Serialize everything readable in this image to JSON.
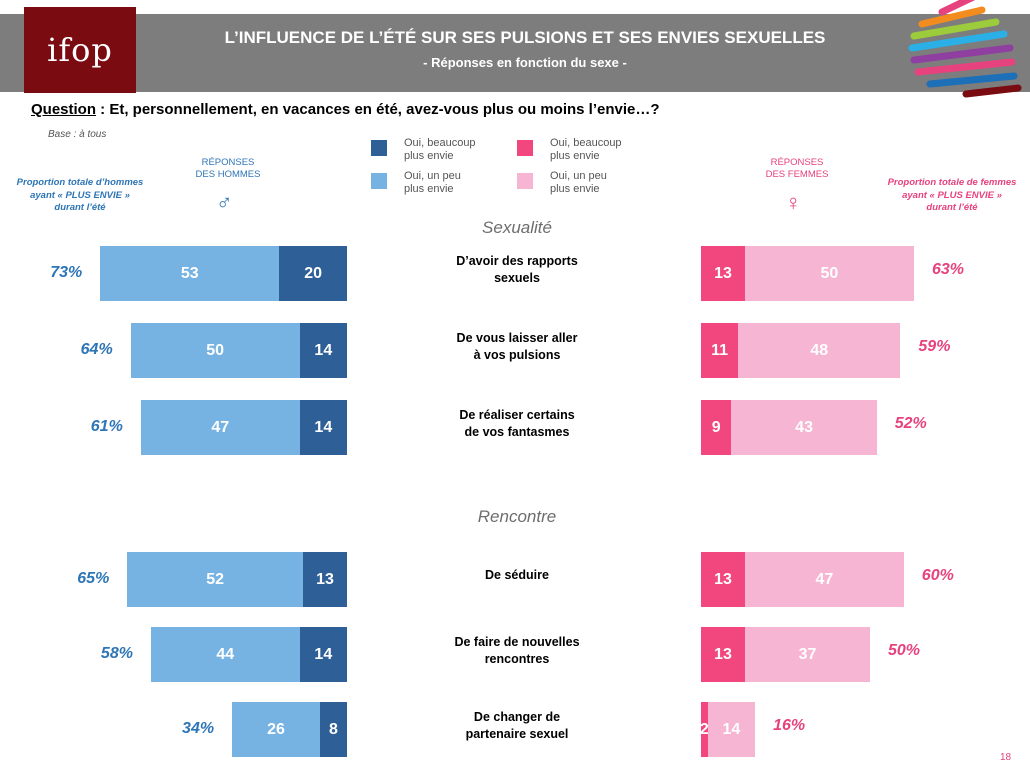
{
  "header": {
    "logo": "ifop",
    "title": "L’INFLUENCE DE L’ÉTÉ SUR SES PULSIONS ET SES ENVIES SEXUELLES",
    "subtitle": "- Réponses en fonction du sexe -"
  },
  "question": {
    "label": "Question",
    "text": " : Et, personnellement, en vacances en été, avez-vous plus ou moins l’envie…?"
  },
  "base": "Base : à tous",
  "colors": {
    "men_high": "#2e5f96",
    "men_low": "#76b3e3",
    "women_high": "#f2467f",
    "women_low": "#f6b5d3",
    "men_text": "#2e75b6",
    "women_text": "#e6427e",
    "header_bg": "#7d7d7d",
    "logo_bg": "#7a0b11"
  },
  "legend": {
    "men_high": "Oui, beaucoup\nplus envie",
    "men_low": "Oui, un peu\nplus envie",
    "women_high": "Oui, beaucoup\nplus envie",
    "women_low": "Oui, un peu\nplus envie"
  },
  "men": {
    "header": "RÉPONSES\nDES HOMMES",
    "symbol": "♂",
    "proportion_label": "Proportion totale d’hommes\nayant « PLUS ENVIE »\ndurant l’été"
  },
  "women": {
    "header": "RÉPONSES\nDES FEMMES",
    "symbol": "♀",
    "proportion_label": "Proportion totale de femmes\nayant « PLUS ENVIE »\ndurant l’été"
  },
  "page_number": "18",
  "chart_data": {
    "type": "bar",
    "orientation": "horizontal-stacked-butterfly",
    "series": [
      {
        "name": "Oui, beaucoup plus envie",
        "group": "men"
      },
      {
        "name": "Oui, un peu plus envie",
        "group": "men"
      },
      {
        "name": "Oui, beaucoup plus envie",
        "group": "women"
      },
      {
        "name": "Oui, un peu plus envie",
        "group": "women"
      }
    ],
    "sections": [
      {
        "title": "Sexualité",
        "items": [
          {
            "label": "D’avoir des rapports\nsexuels",
            "men_high": 20,
            "men_low": 53,
            "men_total": "73%",
            "women_high": 13,
            "women_low": 50,
            "women_total": "63%"
          },
          {
            "label": "De vous laisser aller\nà vos pulsions",
            "men_high": 14,
            "men_low": 50,
            "men_total": "64%",
            "women_high": 11,
            "women_low": 48,
            "women_total": "59%"
          },
          {
            "label": "De réaliser certains\nde vos fantasmes",
            "men_high": 14,
            "men_low": 47,
            "men_total": "61%",
            "women_high": 9,
            "women_low": 43,
            "women_total": "52%"
          }
        ]
      },
      {
        "title": "Rencontre",
        "items": [
          {
            "label": "De séduire",
            "men_high": 13,
            "men_low": 52,
            "men_total": "65%",
            "women_high": 13,
            "women_low": 47,
            "women_total": "60%"
          },
          {
            "label": "De faire de nouvelles\nrencontres",
            "men_high": 14,
            "men_low": 44,
            "men_total": "58%",
            "women_high": 13,
            "women_low": 37,
            "women_total": "50%"
          },
          {
            "label": "De changer de\npartenaire sexuel",
            "men_high": 8,
            "men_low": 26,
            "men_total": "34%",
            "women_high": 2,
            "women_low": 14,
            "women_total": "16%"
          }
        ]
      }
    ]
  }
}
